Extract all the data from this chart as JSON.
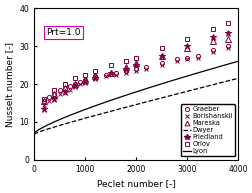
{
  "title_annotation": "Prt=1.0",
  "xlabel": "Peclet number [-]",
  "ylabel": "Nusselt number [-]",
  "xlim": [
    0,
    4000
  ],
  "ylim": [
    0,
    40
  ],
  "xticks": [
    0,
    1000,
    2000,
    3000,
    4000
  ],
  "yticks": [
    0,
    10,
    20,
    30,
    40
  ],
  "graeber": {
    "pe": [
      200,
      300,
      400,
      500,
      600,
      700,
      800,
      900,
      1000,
      1200,
      1400,
      1600,
      1800,
      2000,
      2200,
      2500,
      2800,
      3000,
      3200,
      3500,
      3800
    ],
    "nu": [
      15.5,
      16.5,
      17.5,
      18.5,
      19.0,
      19.5,
      20.0,
      20.5,
      21.0,
      22.0,
      22.5,
      23.0,
      23.5,
      24.0,
      24.5,
      25.5,
      26.5,
      27.0,
      27.5,
      29.0,
      30.0
    ],
    "marker": "o",
    "markersize": 3.0
  },
  "borishanskii": {
    "pe": [
      200,
      300,
      400,
      500,
      600,
      700,
      800,
      900,
      1000,
      1200,
      1400,
      1600,
      1800,
      2000,
      2200,
      2500,
      2800,
      3000,
      3200,
      3500,
      3800
    ],
    "nu": [
      14.5,
      15.5,
      16.5,
      17.5,
      18.0,
      18.5,
      19.5,
      20.0,
      20.5,
      21.5,
      22.0,
      22.5,
      23.0,
      23.5,
      24.0,
      25.0,
      26.0,
      26.5,
      27.0,
      28.5,
      29.5
    ],
    "marker": "x",
    "markersize": 3.5
  },
  "mareska": {
    "pe": [
      200,
      400,
      600,
      800,
      1000,
      1200,
      1500,
      1800,
      2000,
      2500,
      3000,
      3500,
      3800
    ],
    "nu": [
      15.5,
      17.5,
      19.0,
      20.0,
      21.0,
      22.0,
      23.0,
      24.5,
      25.5,
      27.5,
      29.5,
      31.5,
      32.0
    ],
    "marker": "^",
    "markersize": 4.0
  },
  "friedland": {
    "pe": [
      200,
      400,
      600,
      800,
      1000,
      1200,
      1500,
      1800,
      2000,
      2500,
      3000,
      3500,
      3800
    ],
    "nu": [
      13.5,
      16.0,
      18.0,
      19.5,
      20.5,
      21.5,
      23.0,
      24.0,
      25.0,
      27.5,
      30.0,
      32.5,
      33.5
    ],
    "marker": "*",
    "markersize": 4.5
  },
  "orlov": {
    "pe": [
      200,
      400,
      600,
      800,
      1000,
      1200,
      1500,
      1800,
      2000,
      2500,
      3000,
      3500,
      3800
    ],
    "nu": [
      16.0,
      18.5,
      20.0,
      21.5,
      22.5,
      23.5,
      25.0,
      26.0,
      27.0,
      29.5,
      32.0,
      34.5,
      36.0
    ],
    "marker": "s",
    "markersize": 3.5
  },
  "data_color": "#800040",
  "bg_color": "#ffffff",
  "fontsize": 6.5,
  "tick_fontsize": 5.5
}
